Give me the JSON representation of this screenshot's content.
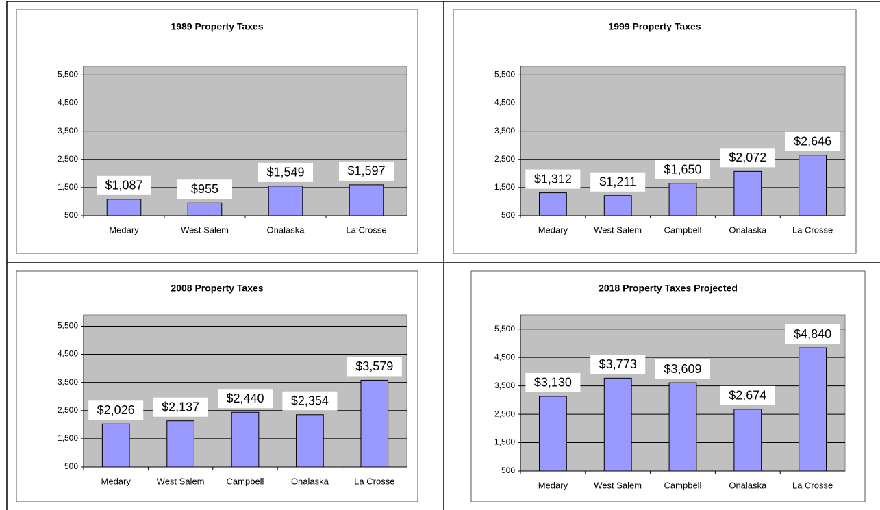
{
  "chart_data": [
    {
      "type": "bar",
      "title": "1989 Property Taxes",
      "categories": [
        "Medary",
        "West Salem",
        "Onalaska",
        "La Crosse"
      ],
      "values": [
        1087,
        955,
        1549,
        1597
      ],
      "value_labels": [
        "$1,087",
        "$955",
        "$1,549",
        "$1,597"
      ],
      "color": "#9999ff",
      "ylim": [
        500,
        5800
      ],
      "yticks": [
        500,
        {
          "value": 1500,
          "label": "1,500"
        },
        {
          "value": 2500,
          "label": "2,500"
        },
        {
          "value": 3500,
          "label": "3,500"
        },
        {
          "value": 4500,
          "label": "4,500"
        },
        {
          "value": 5500,
          "label": "5,500"
        }
      ],
      "grid": true
    },
    {
      "type": "bar",
      "title": "1999 Property Taxes",
      "categories": [
        "Medary",
        "West Salem",
        "Campbell",
        "Onalaska",
        "La Crosse"
      ],
      "values": [
        1312,
        1211,
        1650,
        2072,
        2646
      ],
      "value_labels": [
        "$1,312",
        "$1,211",
        "$1,650",
        "$2,072",
        "$2,646"
      ],
      "color": "#9999ff",
      "ylim": [
        500,
        5800
      ],
      "yticks": [
        500,
        {
          "value": 1500,
          "label": "1,500"
        },
        {
          "value": 2500,
          "label": "2,500"
        },
        {
          "value": 3500,
          "label": "3,500"
        },
        {
          "value": 4500,
          "label": "4,500"
        },
        {
          "value": 5500,
          "label": "5,500"
        }
      ],
      "grid": true
    },
    {
      "type": "bar",
      "title": "2008 Property Taxes",
      "categories": [
        "Medary",
        "West Salem",
        "Campbell",
        "Onalaska",
        "La Crosse"
      ],
      "values": [
        2026,
        2137,
        2440,
        2354,
        3579
      ],
      "value_labels": [
        "$2,026",
        "$2,137",
        "$2,440",
        "$2,354",
        "$3,579"
      ],
      "color": "#9999ff",
      "ylim": [
        500,
        5900
      ],
      "yticks": [
        500,
        {
          "value": 1500,
          "label": "1,500"
        },
        {
          "value": 2500,
          "label": "2,500"
        },
        {
          "value": 3500,
          "label": "3,500"
        },
        {
          "value": 4500,
          "label": "4,500"
        },
        {
          "value": 5500,
          "label": "5,500"
        }
      ],
      "grid": true
    },
    {
      "type": "bar",
      "title": "2018 Property Taxes Projected",
      "categories": [
        "Medary",
        "West Salem",
        "Campbell",
        "Onalaska",
        "La Crosse"
      ],
      "values": [
        3130,
        3773,
        3609,
        2674,
        4840
      ],
      "value_labels": [
        "$3,130",
        "$3,773",
        "$3,609",
        "$2,674",
        "$4,840"
      ],
      "color": "#9999ff",
      "ylim": [
        500,
        6000
      ],
      "yticks": [
        500,
        {
          "value": 1500,
          "label": "1,500"
        },
        {
          "value": 2500,
          "label": "2,500"
        },
        {
          "value": 3500,
          "label": "3,500"
        },
        {
          "value": 4500,
          "label": "4,500"
        },
        {
          "value": 5500,
          "label": "5,500"
        }
      ],
      "grid": true
    }
  ]
}
